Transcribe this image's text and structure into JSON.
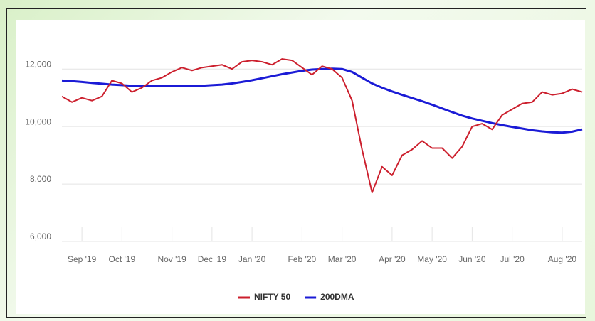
{
  "chart_data": {
    "type": "line",
    "categories": [
      null,
      null,
      "Sep '19",
      null,
      null,
      null,
      "Oct '19",
      null,
      null,
      null,
      null,
      "Nov '19",
      null,
      null,
      null,
      "Dec '19",
      null,
      null,
      null,
      "Jan '20",
      null,
      null,
      null,
      null,
      "Feb '20",
      null,
      null,
      null,
      "Mar '20",
      null,
      null,
      null,
      null,
      "Apr '20",
      null,
      null,
      null,
      "May '20",
      null,
      null,
      null,
      "Jun '20",
      null,
      null,
      null,
      "Jul '20",
      null,
      null,
      null,
      null,
      "Aug '20",
      null,
      null
    ],
    "series": [
      {
        "name": "NIFTY 50",
        "color": "#cc1f2d",
        "values": [
          11050,
          10850,
          11000,
          10900,
          11050,
          11600,
          11500,
          11200,
          11350,
          11600,
          11700,
          11900,
          12050,
          11950,
          12050,
          12100,
          12150,
          12000,
          12250,
          12300,
          12250,
          12150,
          12350,
          12300,
          12050,
          11800,
          12100,
          12000,
          11700,
          10900,
          9200,
          7700,
          8600,
          8300,
          9000,
          9200,
          9500,
          9250,
          9250,
          8900,
          9300,
          10000,
          10100,
          9900,
          10400,
          10600,
          10800,
          10850,
          11200,
          11100,
          11150,
          11300,
          11200
        ]
      },
      {
        "name": "200DMA",
        "color": "#1b1bd6",
        "values": [
          11600,
          11580,
          11550,
          11520,
          11490,
          11460,
          11440,
          11420,
          11410,
          11400,
          11400,
          11400,
          11400,
          11410,
          11420,
          11440,
          11460,
          11500,
          11550,
          11610,
          11680,
          11750,
          11820,
          11880,
          11940,
          11980,
          12000,
          12010,
          12000,
          11900,
          11700,
          11500,
          11350,
          11220,
          11100,
          10990,
          10880,
          10760,
          10630,
          10500,
          10380,
          10280,
          10200,
          10120,
          10050,
          9990,
          9930,
          9870,
          9830,
          9800,
          9790,
          9820,
          9900
        ]
      }
    ],
    "ylim": [
      6000,
      12500
    ],
    "yticks": [
      {
        "value": 6000,
        "label": "6,000"
      },
      {
        "value": 8000,
        "label": "8,000"
      },
      {
        "value": 10000,
        "label": "10,000"
      },
      {
        "value": 12000,
        "label": "12,000"
      }
    ],
    "grid": true
  }
}
